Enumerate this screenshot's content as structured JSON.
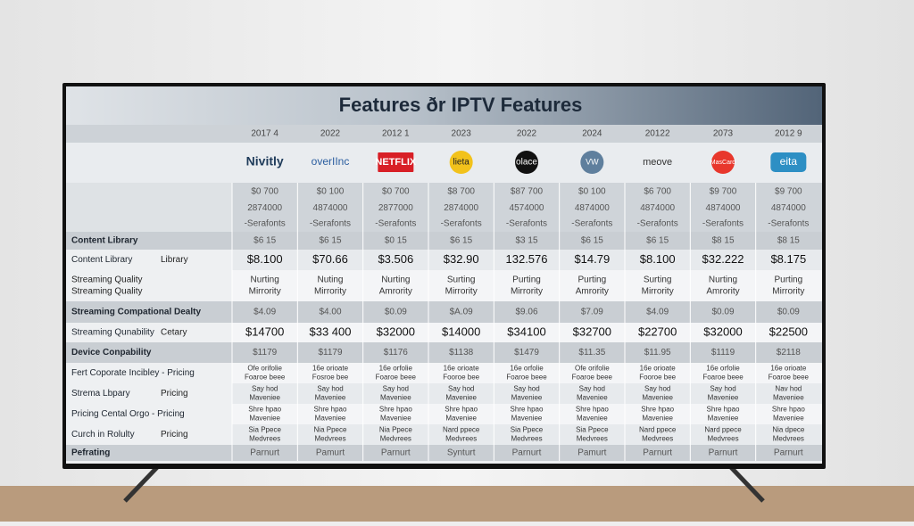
{
  "header": {
    "title": "Features ðr IPTV Features"
  },
  "table": {
    "years": [
      "2017 4",
      "2022",
      "2012 1",
      "2023",
      "2022",
      "2024",
      "20122",
      "2073",
      "2012 9"
    ],
    "brands": [
      "Nivitly",
      "overIInc",
      "NETFLIX",
      "lieta",
      "olace",
      "VW",
      "meove",
      "MasCard",
      "eita"
    ],
    "rows": [
      {
        "label": "",
        "cells": [
          "$0 700",
          "$0 100",
          "$0 700",
          "$8 700",
          "$87 700",
          "$0 100",
          "$6 700",
          "$9 700",
          "$9 700"
        ]
      },
      {
        "label": "",
        "cells": [
          "2874000",
          "4874000",
          "2877000",
          "2874000",
          "4574000",
          "4874000",
          "4874000",
          "4874000",
          "4874000"
        ]
      },
      {
        "label": "",
        "cells": [
          "-Serafonts",
          "-Serafonts",
          "-Serafonts",
          "-Serafonts",
          "-Serafonts",
          "-Serafonts",
          "-Serafonts",
          "-Serafonts",
          "-Serafonts"
        ]
      },
      {
        "label": "Content Library",
        "cells": [
          "$6 15",
          "$6 15",
          "$0 15",
          "$6 15",
          "$3 15",
          "$6 15",
          "$6 15",
          "$8 15",
          "$8 15"
        ]
      },
      {
        "label": "Content Library",
        "label_right": "Library",
        "cells": [
          "$8.100",
          "$70.66",
          "$3.506",
          "$32.90",
          "132.576",
          "$14.79",
          "$8.100",
          "$32.222",
          "$8.175"
        ]
      },
      {
        "label": [
          "Streaming Quality",
          "Streaming Quality"
        ],
        "cells": [
          [
            "Nurting",
            "Mirrority"
          ],
          [
            "Nuting",
            "Mirrority"
          ],
          [
            "Nurting",
            "Amrority"
          ],
          [
            "Surting",
            "Mirrority"
          ],
          [
            "Purting",
            "Mirrority"
          ],
          [
            "Purting",
            "Amrority"
          ],
          [
            "Surting",
            "Mirrority"
          ],
          [
            "Nurting",
            "Amrority"
          ],
          [
            "Purting",
            "Mirrority"
          ]
        ]
      },
      {
        "label": "Streaming Compational Dealty",
        "cells": [
          "$4.09",
          "$4.00",
          "$0.09",
          "$A.09",
          "$9.06",
          "$7.09",
          "$4.09",
          "$0.09",
          "$0.09"
        ]
      },
      {
        "label": "Streaming Qunability",
        "label_right": "Cetary",
        "cells": [
          "$14700",
          "$33 400",
          "$32000",
          "$14000",
          "$34100",
          "$32700",
          "$22700",
          "$32000",
          "$22500"
        ]
      },
      {
        "label": "Device Conpability",
        "cells": [
          "$1179",
          "$1179",
          "$1176",
          "$1138",
          "$1479",
          "$11.35",
          "$11.95",
          "$1119",
          "$2118"
        ]
      },
      {
        "label": "Fert Coporate Incibley - Pricing",
        "cells": [
          [
            "Ofe orifolie",
            "Foaroe beee"
          ],
          [
            "16e orioate",
            "Fosroe bee"
          ],
          [
            "16e orfolie",
            "Foaroe beee"
          ],
          [
            "16e orioate",
            "Fooroe bee"
          ],
          [
            "16e orfolie",
            "Foaroe beee"
          ],
          [
            "Ofe orifolie",
            "Foaroe beee"
          ],
          [
            "16e orioate",
            "Fooroe bee"
          ],
          [
            "16e orfolie",
            "Foaroe beee"
          ],
          [
            "16e orioate",
            "Foaroe beee"
          ]
        ]
      },
      {
        "label": "Strema Lbpary",
        "label_right": "Pricing",
        "cells": [
          [
            "Say hod",
            "Maveniee"
          ],
          [
            "Say hod",
            "Maveniee"
          ],
          [
            "Say hod",
            "Maveniee"
          ],
          [
            "Say hod",
            "Maveniee"
          ],
          [
            "Say hod",
            "Maveniee"
          ],
          [
            "Say hod",
            "Maveniee"
          ],
          [
            "Say hod",
            "Maveniee"
          ],
          [
            "Say hod",
            "Maveniee"
          ],
          [
            "Nav hod",
            "Maveniee"
          ]
        ]
      },
      {
        "label": "Pricing Cental Orgo - Pricing",
        "cells": [
          [
            "Shre hpao",
            "Maveniee"
          ],
          [
            "Shre hpao",
            "Maveniee"
          ],
          [
            "Shre hpao",
            "Maveniee"
          ],
          [
            "Shre hpao",
            "Maveniee"
          ],
          [
            "Shre hpao",
            "Maveniee"
          ],
          [
            "Shre hpao",
            "Maveniee"
          ],
          [
            "Shre hpao",
            "Maveniee"
          ],
          [
            "Shre hpao",
            "Maveniee"
          ],
          [
            "Shre hpao",
            "Maveniee"
          ]
        ]
      },
      {
        "label": "Curch in Rolulty",
        "label_right": "Pricing",
        "cells": [
          [
            "Sia Ppece",
            "Medvrees"
          ],
          [
            "Nia Ppece",
            "Medvrees"
          ],
          [
            "Nia Ppece",
            "Medvrees"
          ],
          [
            "Nard ppece",
            "Medvrees"
          ],
          [
            "Sia Ppece",
            "Medvrees"
          ],
          [
            "Sia Ppece",
            "Medvrees"
          ],
          [
            "Nard ppece",
            "Medvrees"
          ],
          [
            "Nard ppece",
            "Medvrees"
          ],
          [
            "Nia dpece",
            "Medvrees"
          ]
        ]
      },
      {
        "label": "Pefrating",
        "cells": [
          "Parnurt",
          "Pamurt",
          "Parnurt",
          "Synturt",
          "Parnurt",
          "Pamurt",
          "Parnurt",
          "Parnurt",
          "Parnurt"
        ]
      }
    ]
  }
}
